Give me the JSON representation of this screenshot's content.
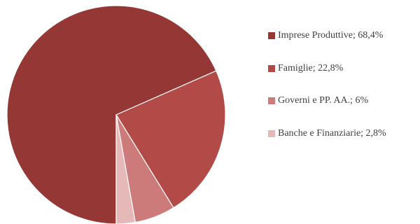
{
  "chart_data": {
    "type": "pie",
    "title": "",
    "start_angle_deg": 180,
    "direction": "clockwise",
    "legend_position": "right",
    "slices": [
      {
        "label": "Imprese Produttive; 68,4%",
        "category": "Imprese Produttive",
        "value": 68.4,
        "color": "#953735"
      },
      {
        "label": "Famiglie; 22,8%",
        "category": "Famiglie",
        "value": 22.8,
        "color": "#b24a48"
      },
      {
        "label": "Governi e PP. AA.; 6%",
        "category": "Governi e PP. AA.",
        "value": 6.0,
        "color": "#cc7b7a"
      },
      {
        "label": "Banche e Finanziarie; 2,8%",
        "category": "Banche e Finanziarie",
        "value": 2.8,
        "color": "#e4b9b8"
      }
    ]
  }
}
